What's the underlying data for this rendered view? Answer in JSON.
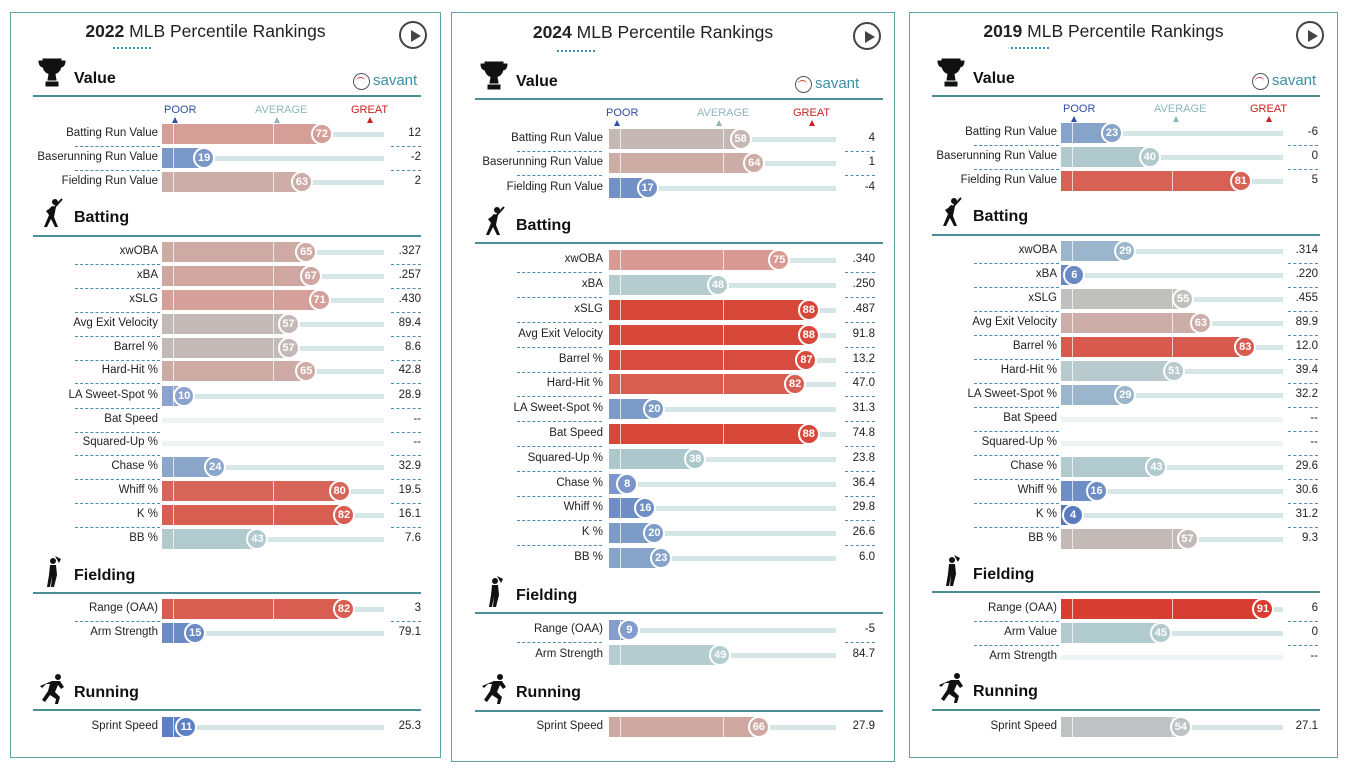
{
  "legend": {
    "poor": "POOR",
    "average": "AVERAGE",
    "great": "GREAT",
    "poor_color": "#2f4fa0",
    "average_color": "#8fb6bd",
    "great_color": "#cc2020"
  },
  "brand": {
    "label": "savant"
  },
  "scale": {
    "min": 0,
    "max": 100,
    "low_color": "#3862b4",
    "mid_color": "#b6cdd0",
    "high_color": "#d73d30"
  },
  "chart_data": [
    {
      "type": "bar",
      "title_year": "2022",
      "title_rest": " MLB Percentile Rankings",
      "xlim": [
        0,
        100
      ],
      "sections": [
        {
          "name": "Value",
          "metrics": [
            {
              "label": "Batting Run Value",
              "percentile": 72,
              "value": "12"
            },
            {
              "label": "Baserunning Run Value",
              "percentile": 19,
              "value": "-2"
            },
            {
              "label": "Fielding Run Value",
              "percentile": 63,
              "value": "2"
            }
          ]
        },
        {
          "name": "Batting",
          "metrics": [
            {
              "label": "xwOBA",
              "percentile": 65,
              "value": ".327"
            },
            {
              "label": "xBA",
              "percentile": 67,
              "value": ".257"
            },
            {
              "label": "xSLG",
              "percentile": 71,
              "value": ".430"
            },
            {
              "label": "Avg Exit Velocity",
              "percentile": 57,
              "value": "89.4"
            },
            {
              "label": "Barrel %",
              "percentile": 57,
              "value": "8.6"
            },
            {
              "label": "Hard-Hit %",
              "percentile": 65,
              "value": "42.8"
            },
            {
              "label": "LA Sweet-Spot %",
              "percentile": 10,
              "value": "28.9"
            },
            {
              "label": "Bat Speed",
              "percentile": null,
              "value": "--"
            },
            {
              "label": "Squared-Up %",
              "percentile": null,
              "value": "--"
            },
            {
              "label": "Chase %",
              "percentile": 24,
              "value": "32.9"
            },
            {
              "label": "Whiff %",
              "percentile": 80,
              "value": "19.5"
            },
            {
              "label": "K %",
              "percentile": 82,
              "value": "16.1"
            },
            {
              "label": "BB %",
              "percentile": 43,
              "value": "7.6"
            }
          ]
        },
        {
          "name": "Fielding",
          "metrics": [
            {
              "label": "Range (OAA)",
              "percentile": 82,
              "value": "3"
            },
            {
              "label": "Arm Strength",
              "percentile": 15,
              "value": "79.1"
            }
          ]
        },
        {
          "name": "Running",
          "metrics": [
            {
              "label": "Sprint Speed",
              "percentile": 11,
              "value": "25.3"
            }
          ]
        }
      ]
    },
    {
      "type": "bar",
      "title_year": "2024",
      "title_rest": " MLB Percentile Rankings",
      "xlim": [
        0,
        100
      ],
      "sections": [
        {
          "name": "Value",
          "metrics": [
            {
              "label": "Batting Run Value",
              "percentile": 58,
              "value": "4"
            },
            {
              "label": "Baserunning Run Value",
              "percentile": 64,
              "value": "1"
            },
            {
              "label": "Fielding Run Value",
              "percentile": 17,
              "value": "-4"
            }
          ]
        },
        {
          "name": "Batting",
          "metrics": [
            {
              "label": "xwOBA",
              "percentile": 75,
              "value": ".340"
            },
            {
              "label": "xBA",
              "percentile": 48,
              "value": ".250"
            },
            {
              "label": "xSLG",
              "percentile": 88,
              "value": ".487"
            },
            {
              "label": "Avg Exit Velocity",
              "percentile": 88,
              "value": "91.8"
            },
            {
              "label": "Barrel %",
              "percentile": 87,
              "value": "13.2"
            },
            {
              "label": "Hard-Hit %",
              "percentile": 82,
              "value": "47.0"
            },
            {
              "label": "LA Sweet-Spot %",
              "percentile": 20,
              "value": "31.3"
            },
            {
              "label": "Bat Speed",
              "percentile": 88,
              "value": "74.8"
            },
            {
              "label": "Squared-Up %",
              "percentile": 38,
              "value": "23.8"
            },
            {
              "label": "Chase %",
              "percentile": 8,
              "value": "36.4"
            },
            {
              "label": "Whiff %",
              "percentile": 16,
              "value": "29.8"
            },
            {
              "label": "K %",
              "percentile": 20,
              "value": "26.6"
            },
            {
              "label": "BB %",
              "percentile": 23,
              "value": "6.0"
            }
          ]
        },
        {
          "name": "Fielding",
          "metrics": [
            {
              "label": "Range (OAA)",
              "percentile": 9,
              "value": "-5"
            },
            {
              "label": "Arm Strength",
              "percentile": 49,
              "value": "84.7"
            }
          ]
        },
        {
          "name": "Running",
          "metrics": [
            {
              "label": "Sprint Speed",
              "percentile": 66,
              "value": "27.9"
            }
          ]
        }
      ]
    },
    {
      "type": "bar",
      "title_year": "2019",
      "title_rest": " MLB Percentile Rankings",
      "xlim": [
        0,
        100
      ],
      "sections": [
        {
          "name": "Value",
          "metrics": [
            {
              "label": "Batting Run Value",
              "percentile": 23,
              "value": "-6"
            },
            {
              "label": "Baserunning Run Value",
              "percentile": 40,
              "value": "0"
            },
            {
              "label": "Fielding Run Value",
              "percentile": 81,
              "value": "5"
            }
          ]
        },
        {
          "name": "Batting",
          "metrics": [
            {
              "label": "xwOBA",
              "percentile": 29,
              "value": ".314"
            },
            {
              "label": "xBA",
              "percentile": 6,
              "value": ".220"
            },
            {
              "label": "xSLG",
              "percentile": 55,
              "value": ".455"
            },
            {
              "label": "Avg Exit Velocity",
              "percentile": 63,
              "value": "89.9"
            },
            {
              "label": "Barrel %",
              "percentile": 83,
              "value": "12.0"
            },
            {
              "label": "Hard-Hit %",
              "percentile": 51,
              "value": "39.4"
            },
            {
              "label": "LA Sweet-Spot %",
              "percentile": 29,
              "value": "32.2"
            },
            {
              "label": "Bat Speed",
              "percentile": null,
              "value": "--"
            },
            {
              "label": "Squared-Up %",
              "percentile": null,
              "value": "--"
            },
            {
              "label": "Chase %",
              "percentile": 43,
              "value": "29.6"
            },
            {
              "label": "Whiff %",
              "percentile": 16,
              "value": "30.6"
            },
            {
              "label": "K %",
              "percentile": 4,
              "value": "31.2"
            },
            {
              "label": "BB %",
              "percentile": 57,
              "value": "9.3"
            }
          ]
        },
        {
          "name": "Fielding",
          "metrics": [
            {
              "label": "Range (OAA)",
              "percentile": 91,
              "value": "6"
            },
            {
              "label": "Arm Value",
              "percentile": 45,
              "value": "0"
            },
            {
              "label": "Arm Strength",
              "percentile": null,
              "value": "--"
            }
          ]
        },
        {
          "name": "Running",
          "metrics": [
            {
              "label": "Sprint Speed",
              "percentile": 54,
              "value": "27.1"
            }
          ]
        }
      ]
    }
  ]
}
